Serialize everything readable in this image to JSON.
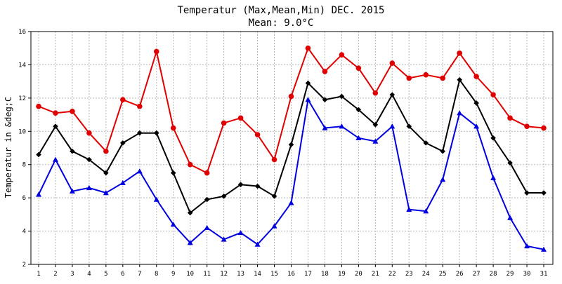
{
  "chart_data": {
    "type": "line",
    "title": "Temperatur (Max,Mean,Min) DEC. 2015",
    "subtitle": "Mean: 9.0°C",
    "xlabel": "",
    "ylabel": "Temperatur in &deg;C",
    "x": [
      1,
      2,
      3,
      4,
      5,
      6,
      7,
      8,
      9,
      10,
      11,
      12,
      13,
      14,
      15,
      16,
      17,
      18,
      19,
      20,
      21,
      22,
      23,
      24,
      25,
      26,
      27,
      28,
      29,
      30,
      31
    ],
    "ylim": [
      2,
      16
    ],
    "yticks": [
      2,
      4,
      6,
      8,
      10,
      12,
      14,
      16
    ],
    "grid": true,
    "legend": "none",
    "series": [
      {
        "color": "#e00000",
        "marker": "circle",
        "values": [
          11.5,
          11.1,
          11.2,
          9.9,
          8.8,
          11.9,
          11.5,
          14.8,
          10.2,
          8.0,
          7.5,
          10.5,
          10.8,
          9.8,
          8.3,
          12.1,
          15.0,
          13.6,
          14.6,
          13.8,
          12.3,
          14.1,
          13.2,
          13.4,
          13.2,
          14.7,
          13.3,
          12.2,
          10.8,
          10.3,
          10.2
        ]
      },
      {
        "color": "#000000",
        "marker": "diamond",
        "values": [
          8.6,
          10.3,
          8.8,
          8.3,
          7.5,
          9.3,
          9.9,
          9.9,
          7.5,
          5.1,
          5.9,
          6.1,
          6.8,
          6.7,
          6.1,
          9.2,
          12.9,
          11.9,
          12.1,
          11.3,
          10.4,
          12.2,
          10.3,
          9.3,
          8.8,
          13.1,
          11.7,
          9.6,
          8.1,
          6.3,
          6.3
        ]
      },
      {
        "color": "#0000e0",
        "marker": "triangle",
        "values": [
          6.2,
          8.3,
          6.4,
          6.6,
          6.3,
          6.9,
          7.6,
          5.9,
          4.4,
          3.3,
          4.2,
          3.5,
          3.9,
          3.2,
          4.3,
          5.7,
          11.9,
          10.2,
          10.3,
          9.6,
          9.4,
          10.3,
          5.3,
          5.2,
          7.1,
          11.1,
          10.3,
          7.2,
          4.8,
          3.1,
          2.9
        ]
      }
    ]
  }
}
